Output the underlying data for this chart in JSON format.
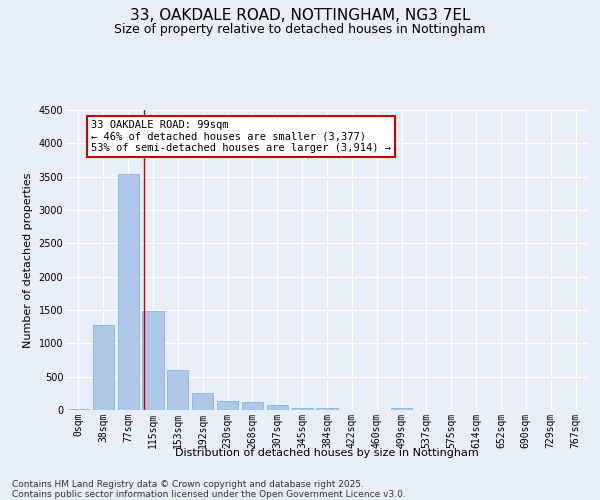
{
  "title_line1": "33, OAKDALE ROAD, NOTTINGHAM, NG3 7EL",
  "title_line2": "Size of property relative to detached houses in Nottingham",
  "xlabel": "Distribution of detached houses by size in Nottingham",
  "ylabel": "Number of detached properties",
  "bar_labels": [
    "0sqm",
    "38sqm",
    "77sqm",
    "115sqm",
    "153sqm",
    "192sqm",
    "230sqm",
    "268sqm",
    "307sqm",
    "345sqm",
    "384sqm",
    "422sqm",
    "460sqm",
    "499sqm",
    "537sqm",
    "575sqm",
    "614sqm",
    "652sqm",
    "690sqm",
    "729sqm",
    "767sqm"
  ],
  "bar_values": [
    15,
    1280,
    3540,
    1490,
    600,
    260,
    130,
    120,
    70,
    30,
    25,
    0,
    0,
    30,
    0,
    0,
    0,
    0,
    0,
    0,
    0
  ],
  "bar_color": "#aec6e8",
  "bar_edge_color": "#7bafd4",
  "background_color": "#e8eef8",
  "grid_color": "#ffffff",
  "annotation_text": "33 OAKDALE ROAD: 99sqm\n← 46% of detached houses are smaller (3,377)\n53% of semi-detached houses are larger (3,914) →",
  "annotation_box_color": "#ffffff",
  "annotation_box_edge": "#cc0000",
  "vline_x": 2.62,
  "vline_color": "#cc0000",
  "ylim": [
    0,
    4500
  ],
  "yticks": [
    0,
    500,
    1000,
    1500,
    2000,
    2500,
    3000,
    3500,
    4000,
    4500
  ],
  "footer_line1": "Contains HM Land Registry data © Crown copyright and database right 2025.",
  "footer_line2": "Contains public sector information licensed under the Open Government Licence v3.0.",
  "title1_fontsize": 11,
  "title2_fontsize": 9,
  "xlabel_fontsize": 8,
  "ylabel_fontsize": 8,
  "tick_fontsize": 7,
  "footer_fontsize": 6.5,
  "annotation_fontsize": 7.5
}
